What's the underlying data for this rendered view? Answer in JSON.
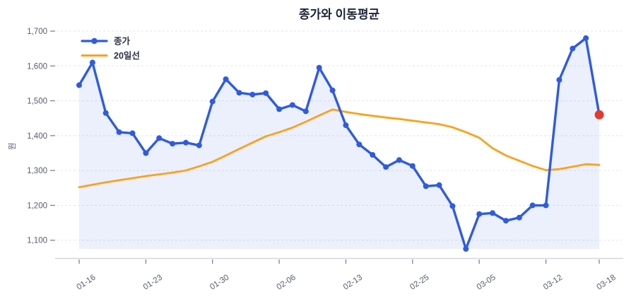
{
  "title": "종가와 이동평균",
  "y_axis": {
    "label": "원"
  },
  "legend": {
    "items": [
      {
        "label": "종가"
      },
      {
        "label": "20일선"
      }
    ]
  },
  "colors": {
    "price_line": "#2e5be0",
    "ma_line": "#f9a21f",
    "highlight_dot": "#e7382d",
    "area_fill": "rgba(46,91,224,0.09)",
    "gridline": "#e3e5ea",
    "axis_line": "#d3d6dd",
    "tick_mark": "#7d8494",
    "tick_text": "#555d6e",
    "title_text": "#1e2338",
    "legend_text": "#2b3247"
  },
  "chart_data": {
    "type": "line",
    "title": "종가와 이동평균",
    "xlabel": "",
    "ylabel": "원",
    "ylim": [
      1050,
      1700
    ],
    "grid": true,
    "legend_position": "top-left",
    "x_type": "trading-day-index",
    "n_points": 40,
    "x_ticks": [
      {
        "index": 0,
        "label": "01-16"
      },
      {
        "index": 5,
        "label": "01-23"
      },
      {
        "index": 10,
        "label": "01-30"
      },
      {
        "index": 15,
        "label": "02-06"
      },
      {
        "index": 20,
        "label": "02-13"
      },
      {
        "index": 25,
        "label": "02-25"
      },
      {
        "index": 30,
        "label": "03-05"
      },
      {
        "index": 35,
        "label": "03-12"
      },
      {
        "index": 39,
        "label": "03-18"
      }
    ],
    "y_ticks": [
      {
        "value": 1100,
        "label": "1,100"
      },
      {
        "value": 1200,
        "label": "1,200"
      },
      {
        "value": 1300,
        "label": "1,300"
      },
      {
        "value": 1400,
        "label": "1,400"
      },
      {
        "value": 1500,
        "label": "1,500"
      },
      {
        "value": 1600,
        "label": "1,600"
      },
      {
        "value": 1700,
        "label": "1,700"
      }
    ],
    "series": [
      {
        "name": "종가",
        "type": "line",
        "marker": "circle",
        "area_fill": true,
        "values": [
          1545,
          1610,
          1465,
          1410,
          1407,
          1350,
          1393,
          1377,
          1380,
          1372,
          1498,
          1562,
          1523,
          1518,
          1522,
          1476,
          1488,
          1470,
          1595,
          1530,
          1430,
          1375,
          1345,
          1310,
          1330,
          1313,
          1255,
          1258,
          1198,
          1075,
          1175,
          1178,
          1156,
          1165,
          1200,
          1200,
          1560,
          1650,
          1680,
          1460
        ]
      },
      {
        "name": "20일선",
        "type": "line",
        "marker": "none",
        "values": [
          1252,
          1259,
          1266,
          1272,
          1278,
          1284,
          1289,
          1294,
          1300,
          1312,
          1325,
          1343,
          1362,
          1380,
          1398,
          1410,
          1423,
          1440,
          1458,
          1475,
          1468,
          1462,
          1457,
          1452,
          1448,
          1443,
          1438,
          1433,
          1424,
          1410,
          1394,
          1364,
          1343,
          1328,
          1313,
          1301,
          1304,
          1311,
          1318,
          1316
        ]
      }
    ],
    "highlight_point": {
      "series": "종가",
      "index": 39,
      "value": 1460
    }
  }
}
